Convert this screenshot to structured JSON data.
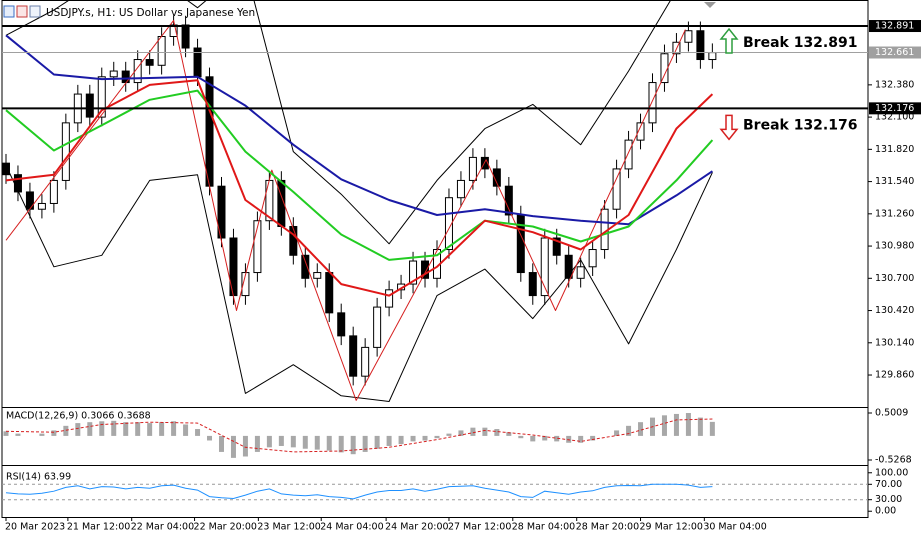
{
  "chart_data": [
    {
      "type": "candlestick",
      "title": "USDJPY.s, H1:  US Dollar vs Japanese Yen",
      "xlim": [
        -0.333,
        72
      ],
      "ylim": [
        129.591,
        133.117
      ],
      "xticks": [
        {
          "value": 0,
          "label": "20 Mar 2023"
        },
        {
          "value": 5.17,
          "label": "21 Mar 12:00"
        },
        {
          "value": 10.5,
          "label": "22 Mar 04:00"
        },
        {
          "value": 15.75,
          "label": "22 Mar 20:00"
        },
        {
          "value": 21.08,
          "label": "23 Mar 12:00"
        },
        {
          "value": 26.33,
          "label": "24 Mar 04:00"
        },
        {
          "value": 31.75,
          "label": "24 Mar 20:00"
        },
        {
          "value": 37,
          "label": "27 Mar 12:00"
        },
        {
          "value": 42.33,
          "label": "28 Mar 04:00"
        },
        {
          "value": 47.67,
          "label": "28 Mar 20:00"
        },
        {
          "value": 53,
          "label": "29 Mar 12:00"
        },
        {
          "value": 58.33,
          "label": "30 Mar 04:00"
        }
      ],
      "yticks": [
        {
          "value": 132.38,
          "label": "132.380"
        },
        {
          "value": 132.1,
          "label": "132.100"
        },
        {
          "value": 131.82,
          "label": "131.820"
        },
        {
          "value": 131.54,
          "label": "131.540"
        },
        {
          "value": 131.26,
          "label": "131.260"
        },
        {
          "value": 130.98,
          "label": "130.980"
        },
        {
          "value": 130.7,
          "label": "130.700"
        },
        {
          "value": 130.42,
          "label": "130.420"
        },
        {
          "value": 130.14,
          "label": "130.140"
        },
        {
          "value": 129.86,
          "label": "129.860"
        }
      ],
      "up_color": "#ffffff",
      "down_color": "#000000",
      "x": [
        0,
        1,
        2,
        3,
        4,
        5,
        6,
        7,
        8,
        9,
        10,
        11,
        12,
        13,
        14,
        15,
        16,
        17,
        18,
        19,
        20,
        21,
        22,
        23,
        24,
        25,
        26,
        27,
        28,
        29,
        30,
        31,
        32,
        33,
        34,
        35,
        36,
        37,
        38,
        39,
        40,
        41,
        42,
        43,
        44,
        45,
        46,
        47,
        48,
        49,
        50,
        51,
        52,
        53,
        54,
        55,
        56,
        57,
        58,
        59
      ],
      "open": [
        131.7,
        131.6,
        131.45,
        131.3,
        131.35,
        131.55,
        132.05,
        132.3,
        132.1,
        132.45,
        132.5,
        132.4,
        132.6,
        132.55,
        132.8,
        132.9,
        132.7,
        132.45,
        131.5,
        131.05,
        130.55,
        130.75,
        131.2,
        131.55,
        131.15,
        130.9,
        130.7,
        130.75,
        130.4,
        130.2,
        129.85,
        130.1,
        130.45,
        130.6,
        130.65,
        130.85,
        130.7,
        130.95,
        131.4,
        131.55,
        131.75,
        131.65,
        131.5,
        131.25,
        130.75,
        130.55,
        131.05,
        130.9,
        130.7,
        130.8,
        130.95,
        131.3,
        131.65,
        131.9,
        132.05,
        132.4,
        132.65,
        132.75,
        132.85,
        132.6
      ],
      "high": [
        131.78,
        131.68,
        131.53,
        131.43,
        131.63,
        132.13,
        132.38,
        132.38,
        132.53,
        132.58,
        132.58,
        132.68,
        132.68,
        132.88,
        132.98,
        132.98,
        132.78,
        132.53,
        131.58,
        131.13,
        130.83,
        131.28,
        131.63,
        131.63,
        131.23,
        130.98,
        130.83,
        130.83,
        130.48,
        130.28,
        130.18,
        130.53,
        130.68,
        130.73,
        130.93,
        130.93,
        131.03,
        131.48,
        131.63,
        131.83,
        131.83,
        131.73,
        131.58,
        131.33,
        130.83,
        131.13,
        131.13,
        130.98,
        130.88,
        131.03,
        131.38,
        131.73,
        131.98,
        132.13,
        132.48,
        132.73,
        132.83,
        132.93,
        132.93,
        132.74
      ],
      "low": [
        131.52,
        131.37,
        131.22,
        131.22,
        131.27,
        131.47,
        131.97,
        132.02,
        132.02,
        132.37,
        132.32,
        132.32,
        132.47,
        132.47,
        132.72,
        132.62,
        132.37,
        131.42,
        130.97,
        130.47,
        130.47,
        130.67,
        131.12,
        131.07,
        130.82,
        130.62,
        130.62,
        130.32,
        130.12,
        129.77,
        129.77,
        130.02,
        130.37,
        130.52,
        130.57,
        130.62,
        130.62,
        130.87,
        131.32,
        131.47,
        131.57,
        131.42,
        131.17,
        130.67,
        130.47,
        130.47,
        130.82,
        130.62,
        130.62,
        130.72,
        130.87,
        131.22,
        131.57,
        131.82,
        131.97,
        132.32,
        132.57,
        132.67,
        132.52,
        132.52
      ],
      "close": [
        131.6,
        131.45,
        131.3,
        131.35,
        131.55,
        132.05,
        132.3,
        132.1,
        132.45,
        132.5,
        132.4,
        132.6,
        132.55,
        132.8,
        132.9,
        132.7,
        132.45,
        131.5,
        131.05,
        130.55,
        130.75,
        131.2,
        131.55,
        131.15,
        130.9,
        130.7,
        130.75,
        130.4,
        130.2,
        129.85,
        130.1,
        130.45,
        130.6,
        130.65,
        130.85,
        130.7,
        130.95,
        131.4,
        131.55,
        131.75,
        131.65,
        131.5,
        131.25,
        130.75,
        130.55,
        131.05,
        130.9,
        130.7,
        130.8,
        130.95,
        131.3,
        131.65,
        131.9,
        132.05,
        132.4,
        132.65,
        132.75,
        132.85,
        132.6,
        132.66
      ],
      "overlays": [
        {
          "kind": "band",
          "color": "#000000",
          "x": [
            0,
            4,
            8,
            12,
            16,
            20,
            24,
            28,
            32,
            36,
            40,
            44,
            48,
            52,
            56,
            59
          ],
          "values": [
            132.81,
            133.03,
            133.3,
            133.35,
            133.05,
            133.4,
            131.8,
            131.43,
            131.0,
            131.55,
            132.0,
            132.21,
            131.86,
            132.5,
            133.2,
            133.4
          ]
        },
        {
          "kind": "band",
          "color": "#000000",
          "x": [
            0,
            4,
            8,
            12,
            16,
            20,
            24,
            28,
            32,
            36,
            40,
            44,
            48,
            52,
            56,
            59
          ],
          "values": [
            131.68,
            130.8,
            130.9,
            131.55,
            131.6,
            129.7,
            129.95,
            129.68,
            129.63,
            130.55,
            130.78,
            130.35,
            130.86,
            130.13,
            130.95,
            131.62
          ]
        },
        {
          "kind": "zigzag",
          "color": "#d62020",
          "x": [
            0,
            14,
            19.25,
            22.2,
            29.25,
            40.1,
            45.9,
            56.75
          ],
          "values": [
            131.03,
            132.94,
            130.42,
            131.64,
            129.64,
            131.73,
            130.42,
            132.86
          ]
        },
        {
          "kind": "ma",
          "color": "#1a1aa6",
          "x": [
            0,
            4,
            8,
            12,
            16,
            20,
            24,
            28,
            32,
            36,
            40,
            44,
            48,
            52,
            56,
            59
          ],
          "values": [
            132.81,
            132.47,
            132.43,
            132.44,
            132.45,
            132.2,
            131.86,
            131.56,
            131.38,
            131.25,
            131.3,
            131.24,
            131.2,
            131.17,
            131.42,
            131.63
          ]
        },
        {
          "kind": "ma",
          "color": "#22cc22",
          "x": [
            0,
            4,
            8,
            12,
            16,
            20,
            24,
            28,
            32,
            36,
            40,
            44,
            48,
            52,
            56,
            59
          ],
          "values": [
            132.16,
            131.81,
            132.03,
            132.25,
            132.33,
            131.8,
            131.45,
            131.08,
            130.86,
            130.9,
            131.2,
            131.15,
            131.02,
            131.15,
            131.55,
            131.9
          ]
        },
        {
          "kind": "ma",
          "color": "#e01818",
          "x": [
            0,
            4,
            8,
            12,
            16,
            20,
            24,
            28,
            32,
            36,
            40,
            44,
            48,
            52,
            56,
            59
          ],
          "values": [
            131.55,
            131.6,
            132.16,
            132.38,
            132.42,
            131.38,
            131.08,
            130.65,
            130.55,
            130.8,
            131.2,
            131.1,
            130.95,
            131.25,
            132.0,
            132.3
          ]
        }
      ],
      "levels": [
        {
          "value": 132.891,
          "color": "#000000",
          "annotation": "Break 132.891",
          "arrow": "up",
          "arrow_color": "#2e9e3e"
        },
        {
          "value": 132.176,
          "color": "#000000",
          "annotation": "Break 132.176",
          "arrow": "down",
          "arrow_color": "#d62020"
        },
        {
          "value": 132.661,
          "color": "#a0a0a0"
        }
      ]
    },
    {
      "type": "macd",
      "label": "MACD(12,26,9) 0.3066 0.3688",
      "ylim": [
        -0.614,
        0.588
      ],
      "yticks": [
        0.5009,
        -0.5268
      ],
      "color": "#a8a8a8",
      "x": [
        0,
        1,
        2,
        3,
        4,
        5,
        6,
        7,
        8,
        9,
        10,
        11,
        12,
        13,
        14,
        15,
        16,
        17,
        18,
        19,
        20,
        21,
        22,
        23,
        24,
        25,
        26,
        27,
        28,
        29,
        30,
        31,
        32,
        33,
        34,
        35,
        36,
        37,
        38,
        39,
        40,
        41,
        42,
        43,
        44,
        45,
        46,
        47,
        48,
        49,
        50,
        51,
        52,
        53,
        54,
        55,
        56,
        57,
        58,
        59
      ],
      "values": [
        0.1,
        0.05,
        0.0,
        0.05,
        0.12,
        0.22,
        0.28,
        0.3,
        0.32,
        0.33,
        0.3,
        0.3,
        0.28,
        0.3,
        0.32,
        0.25,
        0.15,
        -0.1,
        -0.35,
        -0.48,
        -0.45,
        -0.35,
        -0.25,
        -0.22,
        -0.25,
        -0.28,
        -0.3,
        -0.32,
        -0.36,
        -0.4,
        -0.35,
        -0.28,
        -0.22,
        -0.18,
        -0.12,
        -0.1,
        -0.05,
        0.05,
        0.12,
        0.18,
        0.18,
        0.15,
        0.08,
        -0.05,
        -0.12,
        -0.1,
        -0.12,
        -0.15,
        -0.15,
        -0.1,
        0.0,
        0.12,
        0.22,
        0.3,
        0.4,
        0.45,
        0.48,
        0.5,
        0.4,
        0.3066
      ],
      "signal": {
        "color": "#d62020",
        "x": [
          0,
          4,
          8,
          12,
          16,
          20,
          24,
          28,
          32,
          36,
          40,
          44,
          48,
          52,
          56,
          59
        ],
        "values": [
          0.1,
          0.08,
          0.25,
          0.3,
          0.28,
          -0.25,
          -0.35,
          -0.33,
          -0.25,
          -0.08,
          0.12,
          0.02,
          -0.12,
          0.05,
          0.35,
          0.3688
        ]
      }
    },
    {
      "type": "line",
      "label": "RSI(14) 63.99",
      "ylim": [
        -15,
        115
      ],
      "color": "#1e90ff",
      "yticks": [
        {
          "value": 100,
          "label": "100.00"
        },
        {
          "value": 70,
          "label": "70.00"
        },
        {
          "value": 30,
          "label": "30.00"
        },
        {
          "value": 0,
          "label": "0.00"
        }
      ],
      "levels": [
        70,
        30
      ],
      "x": [
        0,
        1,
        2,
        3,
        4,
        5,
        6,
        7,
        8,
        9,
        10,
        11,
        12,
        13,
        14,
        15,
        16,
        17,
        18,
        19,
        20,
        21,
        22,
        23,
        24,
        25,
        26,
        27,
        28,
        29,
        30,
        31,
        32,
        33,
        34,
        35,
        36,
        37,
        38,
        39,
        40,
        41,
        42,
        43,
        44,
        45,
        46,
        47,
        48,
        49,
        50,
        51,
        52,
        53,
        54,
        55,
        56,
        57,
        58,
        59
      ],
      "values": [
        48,
        45,
        44,
        47,
        52,
        62,
        66,
        58,
        64,
        63,
        58,
        62,
        60,
        66,
        68,
        60,
        55,
        38,
        35,
        33,
        42,
        52,
        58,
        45,
        42,
        40,
        43,
        38,
        36,
        32,
        42,
        50,
        54,
        54,
        58,
        52,
        57,
        64,
        65,
        66,
        60,
        55,
        50,
        38,
        36,
        52,
        48,
        44,
        50,
        53,
        62,
        66,
        67,
        66,
        70,
        70,
        70,
        68,
        62,
        63.99
      ]
    }
  ]
}
